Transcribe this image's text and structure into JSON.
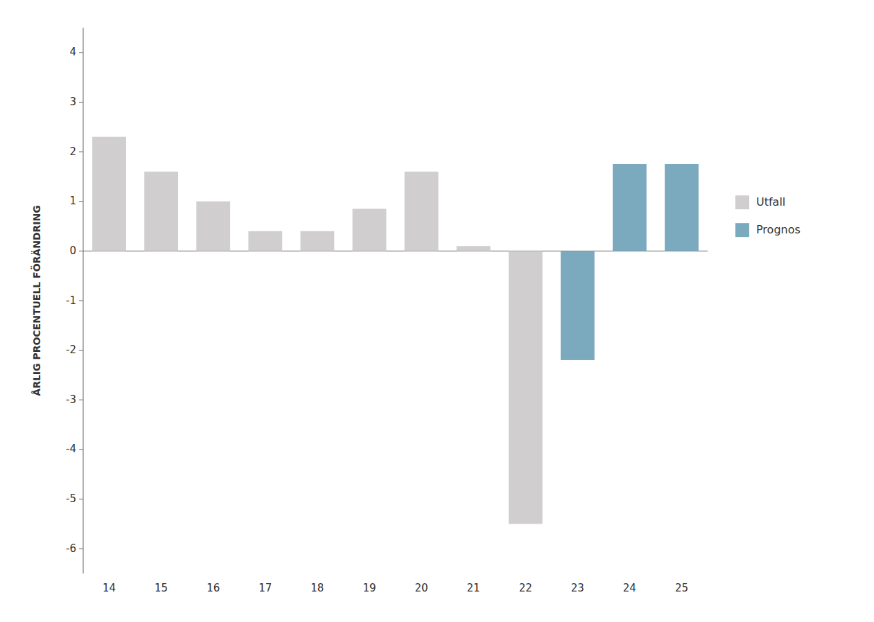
{
  "chart_data": {
    "type": "bar",
    "ylabel": "ÅRLIG PROCENTUELL FÖRÄNDRING",
    "categories": [
      "14",
      "15",
      "16",
      "17",
      "18",
      "19",
      "20",
      "21",
      "22",
      "23",
      "24",
      "25"
    ],
    "series": [
      {
        "name": "Utfall",
        "color": "#d0cece",
        "values": [
          2.3,
          1.6,
          1.0,
          0.4,
          0.4,
          0.85,
          1.6,
          0.1,
          -5.5,
          null,
          null,
          null
        ]
      },
      {
        "name": "Prognos",
        "color": "#7baabf",
        "values": [
          null,
          null,
          null,
          null,
          null,
          null,
          null,
          null,
          null,
          -2.2,
          1.75,
          1.75
        ]
      }
    ],
    "ylim": [
      -6.5,
      4.5
    ],
    "yticks": [
      -6,
      -5,
      -4,
      -3,
      -2,
      -1,
      0,
      1,
      2,
      3,
      4
    ],
    "grid": false,
    "legend": "right"
  }
}
